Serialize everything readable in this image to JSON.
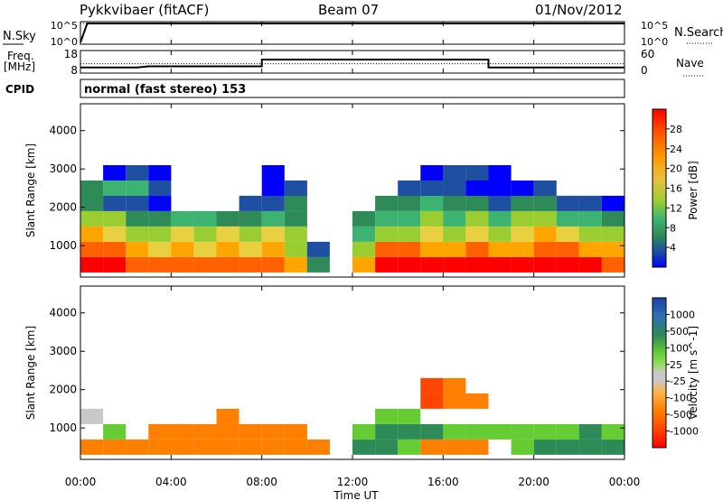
{
  "header": {
    "station": "Pykkvibaer (fitACF)",
    "beam": "Beam 07",
    "date": "01/Nov/2012"
  },
  "sky_panel": {
    "left_label": "N.Sky",
    "right_label": "N.Search",
    "left_ticks": [
      "10^5",
      "10^0"
    ],
    "right_ticks": [
      "10^5",
      "10^0"
    ]
  },
  "freq_panel": {
    "left_label_1": "Freq.",
    "left_label_2": "[MHz]",
    "right_label": "Nave",
    "left_ticks": [
      "18",
      "8"
    ],
    "right_ticks": [
      "60",
      "0"
    ]
  },
  "cpid_panel": {
    "label": "CPID",
    "text": "normal (fast stereo) 153"
  },
  "power_panel": {
    "ylabel": "Slant Range [km]",
    "yticks": [
      "4000",
      "3000",
      "2000",
      "1000"
    ],
    "colorbar_label": "Power [dB]",
    "colorbar_ticks": [
      "28",
      "24",
      "20",
      "16",
      "12",
      "8",
      "4"
    ],
    "colorbar_colors": [
      "#ff0000",
      "#ff6000",
      "#ffa500",
      "#e8d040",
      "#9acd32",
      "#3cb371",
      "#2e8b57",
      "#1e4fa0",
      "#0000ff"
    ]
  },
  "velocity_panel": {
    "ylabel": "Slant Range [km]",
    "yticks": [
      "4000",
      "3000",
      "2000",
      "1000"
    ],
    "colorbar_label": "Velocity [m s^-1]",
    "colorbar_ticks": [
      "1000",
      "500",
      "100",
      "25",
      "-25",
      "-100",
      "-500",
      "-1000"
    ],
    "colorbar_colors": [
      "#1f3fa8",
      "#2e8b57",
      "#66cc33",
      "#99dd66",
      "#c8c8c8",
      "#ffb347",
      "#ff8000",
      "#ff4500",
      "#ff0000"
    ]
  },
  "x_axis": {
    "label": "Time UT",
    "ticks": [
      "00:00",
      "04:00",
      "08:00",
      "12:00",
      "16:00",
      "20:00",
      "00:00"
    ]
  },
  "chart_data": [
    {
      "type": "line",
      "title": "N.Sky / N.Search",
      "x_unit": "hours UT",
      "xlim": [
        0,
        24
      ],
      "series": [
        {
          "name": "N.Sky",
          "x": [
            0,
            0.3,
            24
          ],
          "y": [
            1,
            100000,
            100000
          ]
        },
        {
          "name": "N.Search",
          "x": [
            0,
            24
          ],
          "y": [
            100000,
            100000
          ]
        }
      ],
      "ylim": [
        1,
        100000
      ],
      "scale": "log"
    },
    {
      "type": "line",
      "title": "Freq. / Nave",
      "x_unit": "hours UT",
      "xlim": [
        0,
        24
      ],
      "series": [
        {
          "name": "Freq.",
          "x": [
            0,
            2.5,
            3.0,
            8.0,
            8.0,
            18.0,
            18.0,
            24
          ],
          "y": [
            10.5,
            10.5,
            11.0,
            11.0,
            14.0,
            14.0,
            10.5,
            10.5
          ]
        },
        {
          "name": "Nave",
          "x": [
            0,
            24
          ],
          "y": [
            25,
            25
          ]
        }
      ],
      "ylim_left": [
        8,
        18
      ],
      "ylim_right": [
        0,
        60
      ]
    },
    {
      "type": "heatmap",
      "title": "Power [dB]",
      "xlabel": "Time UT",
      "ylabel": "Slant Range [km]",
      "xlim": [
        0,
        24
      ],
      "ylim": [
        180,
        4700
      ],
      "clim": [
        0,
        30
      ],
      "x_hours": [
        0,
        1,
        2,
        3,
        4,
        5,
        6,
        7,
        8,
        9,
        10,
        11,
        12,
        13,
        14,
        15,
        16,
        17,
        18,
        19,
        20,
        21,
        22,
        23
      ],
      "range_km": [
        500,
        900,
        1300,
        1700,
        2100,
        2500,
        2900
      ],
      "values": [
        [
          28,
          24,
          18,
          12,
          8,
          8,
          0
        ],
        [
          26,
          22,
          16,
          12,
          6,
          10,
          4
        ],
        [
          24,
          18,
          14,
          8,
          6,
          10,
          6
        ],
        [
          22,
          16,
          12,
          8,
          4,
          6,
          4
        ],
        [
          24,
          18,
          16,
          10,
          0,
          0,
          0
        ],
        [
          24,
          16,
          14,
          10,
          0,
          0,
          0
        ],
        [
          22,
          18,
          16,
          8,
          0,
          0,
          0
        ],
        [
          22,
          16,
          14,
          8,
          6,
          0,
          0
        ],
        [
          22,
          18,
          16,
          10,
          6,
          4,
          4
        ],
        [
          20,
          14,
          12,
          8,
          8,
          6,
          0
        ],
        [
          8,
          6,
          0,
          0,
          0,
          0,
          0
        ],
        [
          0,
          0,
          0,
          0,
          0,
          0,
          0
        ],
        [
          20,
          14,
          10,
          8,
          0,
          0,
          0
        ],
        [
          28,
          22,
          14,
          10,
          8,
          0,
          0
        ],
        [
          28,
          22,
          14,
          10,
          8,
          6,
          0
        ],
        [
          28,
          20,
          16,
          12,
          10,
          6,
          4
        ],
        [
          28,
          20,
          14,
          10,
          8,
          6,
          6
        ],
        [
          28,
          22,
          16,
          12,
          8,
          4,
          6
        ],
        [
          26,
          20,
          14,
          10,
          6,
          4,
          4
        ],
        [
          26,
          20,
          16,
          12,
          8,
          4,
          0
        ],
        [
          26,
          22,
          18,
          14,
          8,
          6,
          0
        ],
        [
          28,
          22,
          16,
          10,
          6,
          0,
          0
        ],
        [
          26,
          20,
          14,
          10,
          6,
          0,
          0
        ],
        [
          24,
          18,
          12,
          8,
          4,
          0,
          0
        ]
      ]
    },
    {
      "type": "heatmap",
      "title": "Velocity [m s^-1]",
      "xlabel": "Time UT",
      "ylabel": "Slant Range [km]",
      "xlim": [
        0,
        24
      ],
      "ylim": [
        180,
        4700
      ],
      "clim": [
        -1000,
        1000
      ],
      "x_hours": [
        0,
        1,
        2,
        3,
        4,
        5,
        6,
        7,
        8,
        9,
        10,
        11,
        12,
        13,
        14,
        15,
        16,
        17,
        18,
        19,
        20,
        21,
        22,
        23
      ],
      "range_km": [
        500,
        900,
        1300,
        1700,
        2100,
        2500,
        2900
      ],
      "values": [
        [
          -100,
          0,
          20,
          0,
          0,
          0,
          0
        ],
        [
          -200,
          100,
          0,
          0,
          0,
          0,
          0
        ],
        [
          -300,
          0,
          0,
          0,
          0,
          0,
          0
        ],
        [
          -300,
          -100,
          0,
          0,
          0,
          0,
          0
        ],
        [
          -400,
          -300,
          0,
          0,
          0,
          0,
          0
        ],
        [
          -400,
          -400,
          0,
          0,
          0,
          0,
          0
        ],
        [
          -400,
          -400,
          -100,
          0,
          0,
          0,
          0
        ],
        [
          -400,
          -300,
          0,
          0,
          0,
          0,
          0
        ],
        [
          -300,
          -200,
          0,
          0,
          0,
          0,
          0
        ],
        [
          -300,
          -100,
          0,
          0,
          0,
          0,
          0
        ],
        [
          -100,
          0,
          0,
          0,
          0,
          0,
          0
        ],
        [
          0,
          0,
          0,
          0,
          0,
          0,
          0
        ],
        [
          500,
          200,
          0,
          0,
          0,
          0,
          0
        ],
        [
          500,
          600,
          100,
          0,
          0,
          0,
          0
        ],
        [
          100,
          500,
          100,
          0,
          0,
          0,
          0
        ],
        [
          -100,
          300,
          0,
          -500,
          -600,
          0,
          0
        ],
        [
          -200,
          200,
          0,
          -300,
          -400,
          0,
          0
        ],
        [
          -100,
          100,
          0,
          -100,
          0,
          0,
          0
        ],
        [
          0,
          100,
          0,
          0,
          0,
          0,
          0
        ],
        [
          200,
          100,
          0,
          0,
          0,
          0,
          0
        ],
        [
          300,
          200,
          0,
          0,
          0,
          0,
          0
        ],
        [
          400,
          200,
          0,
          0,
          0,
          0,
          0
        ],
        [
          600,
          300,
          0,
          0,
          0,
          0,
          0
        ],
        [
          300,
          100,
          0,
          0,
          0,
          0,
          0
        ]
      ]
    }
  ]
}
